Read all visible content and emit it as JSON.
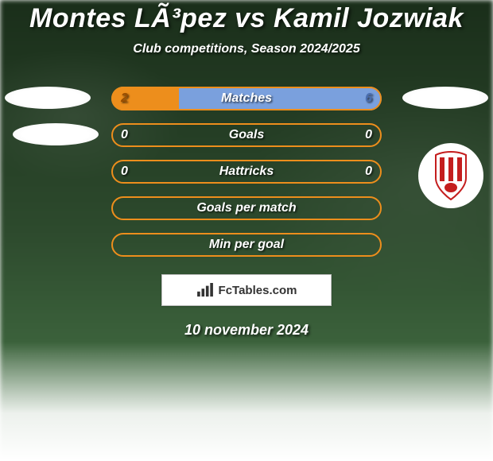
{
  "header": {
    "title": "Montes LÃ³pez vs Kamil Jozwiak",
    "subtitle": "Club competitions, Season 2024/2025",
    "title_fontsize": 34,
    "subtitle_fontsize": 16,
    "text_color": "#ffffff"
  },
  "chart": {
    "type": "comparison-bars",
    "pill_width": 340,
    "pill_height": 30,
    "pill_radius": 15,
    "label_fontsize": 16,
    "value_fontsize": 16,
    "left_value_color": "#9a4e00",
    "right_value_color": "#4a6eb0",
    "neutral_value_color": "#ffffff",
    "rows": [
      {
        "key": "matches",
        "label": "Matches",
        "left": "2",
        "right": "6",
        "left_color": "#ed8e1c",
        "right_color": "#7aa0dd",
        "border_color": "#ed8e1c",
        "fill_split_pct": 25,
        "has_values": true
      },
      {
        "key": "goals",
        "label": "Goals",
        "left": "0",
        "right": "0",
        "left_color": "transparent",
        "right_color": "transparent",
        "border_color": "#ed8e1c",
        "fill_split_pct": 0,
        "has_values": true
      },
      {
        "key": "hattricks",
        "label": "Hattricks",
        "left": "0",
        "right": "0",
        "left_color": "transparent",
        "right_color": "transparent",
        "border_color": "#ed8e1c",
        "fill_split_pct": 0,
        "has_values": true
      },
      {
        "key": "goals-per-match",
        "label": "Goals per match",
        "left": "",
        "right": "",
        "border_color": "#ed8e1c",
        "has_values": false
      },
      {
        "key": "min-per-goal",
        "label": "Min per goal",
        "left": "",
        "right": "",
        "border_color": "#ed8e1c",
        "has_values": false
      }
    ]
  },
  "side_markers": {
    "row1_left": true,
    "row1_right": true,
    "row2_left": true,
    "crest_right": {
      "stripe_color": "#c41e1e",
      "background": "#ffffff"
    },
    "ellipse_fill": "#ffffff"
  },
  "footer": {
    "badge_text": "FcTables.com",
    "badge_bg": "#ffffff",
    "badge_text_color": "#333333",
    "date": "10 november 2024",
    "date_fontsize": 18
  },
  "background": {
    "gradient_top": "#1a2e1a",
    "gradient_mid": "#2d4a2d",
    "gradient_bottom": "#4a7a4a",
    "fade_to": "#ffffff"
  }
}
